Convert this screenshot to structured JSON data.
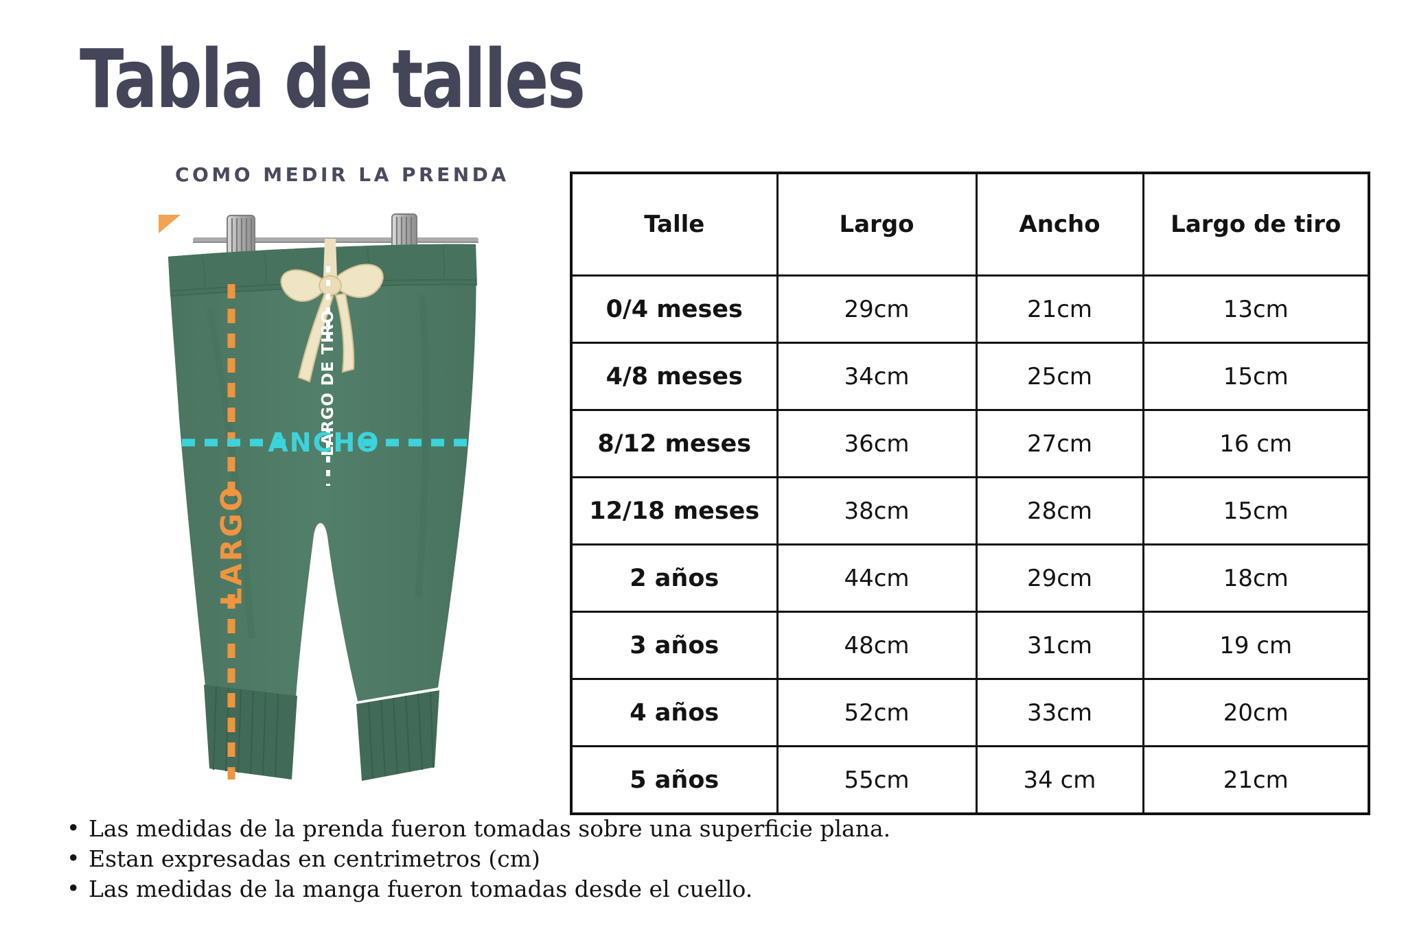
{
  "title": "Tabla de talles",
  "subtitle": "COMO MEDIR LA PRENDA",
  "photo": {
    "labels": {
      "largo": "LARGO",
      "ancho": "ANCHO",
      "largo_de_tiro": "LARGO DE TIRO"
    },
    "colors": {
      "pants_green": "#4E7A64",
      "largo_orange": "#F0943F",
      "ancho_cyan": "#3BD4DC",
      "tiro_white": "#FFFFFF"
    }
  },
  "table": {
    "columns": [
      "Talle",
      "Largo",
      "Ancho",
      "Largo de tiro"
    ],
    "rows": [
      {
        "talle": "0/4 meses",
        "largo": "29cm",
        "ancho": "21cm",
        "largo_de_tiro": "13cm"
      },
      {
        "talle": "4/8 meses",
        "largo": "34cm",
        "ancho": "25cm",
        "largo_de_tiro": "15cm"
      },
      {
        "talle": "8/12 meses",
        "largo": "36cm",
        "ancho": "27cm",
        "largo_de_tiro": "16 cm"
      },
      {
        "talle": "12/18 meses",
        "largo": "38cm",
        "ancho": "28cm",
        "largo_de_tiro": "15cm"
      },
      {
        "talle": "2 años",
        "largo": "44cm",
        "ancho": "29cm",
        "largo_de_tiro": "18cm"
      },
      {
        "talle": "3 años",
        "largo": "48cm",
        "ancho": "31cm",
        "largo_de_tiro": "19 cm"
      },
      {
        "talle": "4 años",
        "largo": "52cm",
        "ancho": "33cm",
        "largo_de_tiro": "20cm"
      },
      {
        "talle": "5 años",
        "largo": "55cm",
        "ancho": "34 cm",
        "largo_de_tiro": "21cm"
      }
    ]
  },
  "notes": [
    "Las medidas de la prenda fueron tomadas sobre una superficie plana.",
    "Estan expresadas en centrimetros (cm)",
    "Las medidas de la manga fueron tomadas desde el cuello."
  ],
  "bullet_glyph": "•"
}
